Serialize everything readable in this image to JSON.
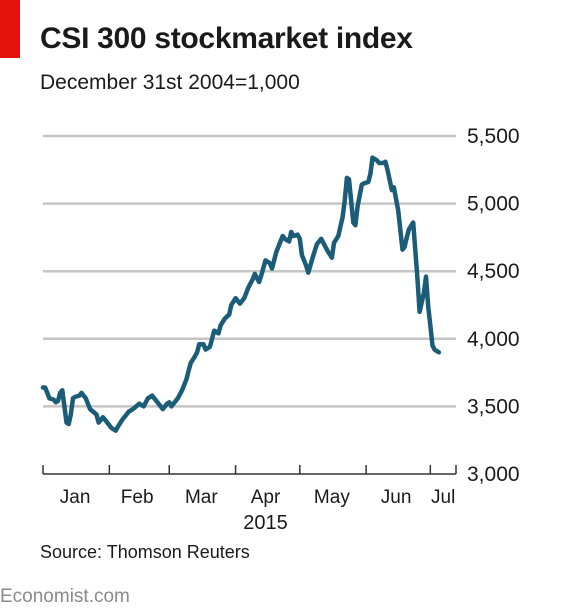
{
  "header": {
    "title": "CSI 300 stockmarket index",
    "subtitle": "December 31st 2004=1,000"
  },
  "source": "Source: Thomson Reuters",
  "footer": "Economist.com",
  "colors": {
    "accent": "#e3120b",
    "line": "#1b5c78",
    "grid": "#c6c6c6",
    "text": "#1a1a1a",
    "footer": "#8a8a8a"
  },
  "chart_data": {
    "type": "line",
    "title": "CSI 300 stockmarket index",
    "subtitle": "December 31st 2004=1,000",
    "ylim": [
      3000,
      5500
    ],
    "yticks": [
      3000,
      3500,
      4000,
      4500,
      5000,
      5500
    ],
    "ytick_labels": [
      "3,000",
      "3,500",
      "4,000",
      "4,500",
      "5,000",
      "5,500"
    ],
    "y_axis_side": "right",
    "grid": true,
    "x_start": "2015-01-01",
    "x_end": "2015-07-13",
    "month_labels": [
      {
        "label": "Jan",
        "center": "2015-01-16"
      },
      {
        "label": "Feb",
        "center": "2015-02-14"
      },
      {
        "label": "Mar",
        "center": "2015-03-16"
      },
      {
        "label": "Apr",
        "center": "2015-04-15"
      },
      {
        "label": "May",
        "center": "2015-05-16"
      },
      {
        "label": "Jun",
        "center": "2015-06-15"
      },
      {
        "label": "Jul",
        "center": "2015-07-07"
      }
    ],
    "month_ticks": [
      "2015-01-01",
      "2015-02-01",
      "2015-03-01",
      "2015-04-01",
      "2015-05-01",
      "2015-06-01",
      "2015-07-01"
    ],
    "year_label": "2015",
    "series": [
      {
        "x": [
          "2015-01-01",
          "2015-01-02",
          "2015-01-03",
          "2015-01-04",
          "2015-01-06",
          "2015-01-07",
          "2015-01-08",
          "2015-01-09",
          "2015-01-10",
          "2015-01-12",
          "2015-01-13",
          "2015-01-14",
          "2015-01-15",
          "2015-01-16",
          "2015-01-18",
          "2015-01-19",
          "2015-01-21",
          "2015-01-22",
          "2015-01-23",
          "2015-01-26",
          "2015-01-27",
          "2015-01-29",
          "2015-01-30",
          "2015-02-01",
          "2015-02-02",
          "2015-02-04",
          "2015-02-05",
          "2015-02-07",
          "2015-02-08",
          "2015-02-09",
          "2015-02-10",
          "2015-02-12",
          "2015-02-15",
          "2015-02-17",
          "2015-02-19",
          "2015-02-21",
          "2015-02-24",
          "2015-02-25",
          "2015-02-26",
          "2015-02-28",
          "2015-03-01",
          "2015-03-02",
          "2015-03-03",
          "2015-03-05",
          "2015-03-07",
          "2015-03-09",
          "2015-03-10",
          "2015-03-11",
          "2015-03-13",
          "2015-03-14",
          "2015-03-15",
          "2015-03-17",
          "2015-03-18",
          "2015-03-20",
          "2015-03-22",
          "2015-03-24",
          "2015-03-25",
          "2015-03-27",
          "2015-03-29",
          "2015-03-30",
          "2015-04-01",
          "2015-04-02",
          "2015-04-03",
          "2015-04-05",
          "2015-04-07",
          "2015-04-09",
          "2015-04-10",
          "2015-04-12",
          "2015-04-13",
          "2015-04-15",
          "2015-04-17",
          "2015-04-18",
          "2015-04-20",
          "2015-04-22",
          "2015-04-23",
          "2015-04-24",
          "2015-04-26",
          "2015-04-27",
          "2015-04-28",
          "2015-04-30",
          "2015-05-01",
          "2015-05-02",
          "2015-05-04",
          "2015-05-05",
          "2015-05-07",
          "2015-05-09",
          "2015-05-11",
          "2015-05-12",
          "2015-05-14",
          "2015-05-16",
          "2015-05-17",
          "2015-05-19",
          "2015-05-21",
          "2015-05-22",
          "2015-05-23",
          "2015-05-24",
          "2015-05-26",
          "2015-05-27",
          "2015-05-28",
          "2015-05-30",
          "2015-05-31",
          "2015-06-02",
          "2015-06-03",
          "2015-06-04",
          "2015-06-06",
          "2015-06-07",
          "2015-06-09",
          "2015-06-10",
          "2015-06-11",
          "2015-06-13",
          "2015-06-14",
          "2015-06-16",
          "2015-06-18",
          "2015-06-19",
          "2015-06-20",
          "2015-06-21",
          "2015-06-23",
          "2015-06-25",
          "2015-06-26",
          "2015-06-28",
          "2015-06-29",
          "2015-06-30",
          "2015-07-01",
          "2015-07-02",
          "2015-07-03",
          "2015-07-04",
          "2015-07-05"
        ],
        "values": [
          3640,
          3640,
          3600,
          3560,
          3550,
          3530,
          3540,
          3600,
          3620,
          3380,
          3370,
          3440,
          3560,
          3570,
          3580,
          3600,
          3560,
          3520,
          3480,
          3440,
          3380,
          3420,
          3400,
          3360,
          3340,
          3320,
          3350,
          3400,
          3420,
          3440,
          3460,
          3480,
          3520,
          3500,
          3560,
          3580,
          3520,
          3500,
          3480,
          3520,
          3530,
          3500,
          3520,
          3560,
          3620,
          3700,
          3760,
          3820,
          3870,
          3900,
          3960,
          3960,
          3920,
          3940,
          4060,
          4040,
          4100,
          4150,
          4180,
          4250,
          4300,
          4280,
          4260,
          4300,
          4380,
          4440,
          4480,
          4420,
          4470,
          4580,
          4560,
          4520,
          4640,
          4720,
          4760,
          4740,
          4720,
          4790,
          4760,
          4770,
          4740,
          4620,
          4540,
          4490,
          4600,
          4700,
          4740,
          4710,
          4650,
          4600,
          4710,
          4760,
          4900,
          5020,
          5190,
          5180,
          4860,
          4840,
          4980,
          5140,
          5150,
          5160,
          5220,
          5340,
          5320,
          5300,
          5300,
          5310,
          5250,
          5100,
          5120,
          4950,
          4660,
          4680,
          4750,
          4810,
          4860,
          4440,
          4200,
          4340,
          4460,
          4240,
          4100,
          3950,
          3920,
          3910,
          3900
        ]
      }
    ]
  }
}
